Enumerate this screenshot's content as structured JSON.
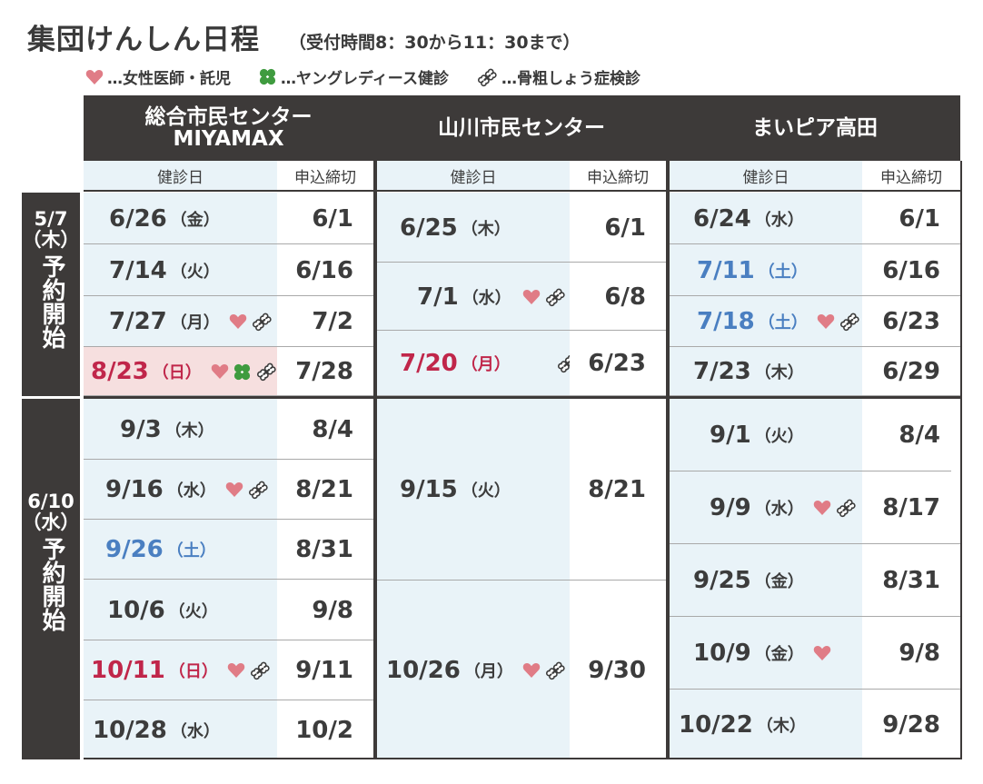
{
  "title": "集団けんしん日程",
  "subtitle": "（受付時間8：30から11：30まで）",
  "legend": [
    {
      "icon": "heart-icon",
      "label": "…女性医師・託児"
    },
    {
      "icon": "clover-icon",
      "label": "…ヤングレディース健診"
    },
    {
      "icon": "bone-icon",
      "label": "…骨粗しょう症検診"
    }
  ],
  "colors": {
    "heart": "#e07c86",
    "clover": "#3f9b3f",
    "blue": "#4a7fc1",
    "red": "#c0264a",
    "dark": "#3d3a39",
    "light_blue": "#e9f3f8"
  },
  "periods": [
    {
      "line1": "5/7",
      "line2": "（木）",
      "line3": "予約開始"
    },
    {
      "line1": "6/10",
      "line2": "（水）",
      "line3": "予約開始"
    }
  ],
  "venues": [
    {
      "name_line1": "総合市民センター",
      "name_line2": "MIYAMAX",
      "col_date": "健診日",
      "col_deadline": "申込締切",
      "rows": [
        {
          "date": "6/26",
          "weekday": "（金）",
          "deadline": "6/1"
        },
        {
          "date": "7/14",
          "weekday": "（火）",
          "deadline": "6/16"
        },
        {
          "date": "7/27",
          "weekday": "（月）",
          "deadline": "7/2",
          "icons": [
            "heart-icon",
            "bone-icon"
          ]
        },
        {
          "date": "8/23",
          "weekday": "（日）",
          "deadline": "7/28",
          "icons": [
            "heart-icon",
            "clover-icon",
            "bone-icon"
          ]
        },
        {
          "date": "9/3",
          "weekday": "（木）",
          "deadline": "8/4"
        },
        {
          "date": "9/16",
          "weekday": "（水）",
          "deadline": "8/21",
          "icons": [
            "heart-icon",
            "bone-icon"
          ]
        },
        {
          "date": "9/26",
          "weekday": "（土）",
          "deadline": "8/31"
        },
        {
          "date": "10/6",
          "weekday": "（火）",
          "deadline": "9/8"
        },
        {
          "date": "10/11",
          "weekday": "（日）",
          "deadline": "9/11",
          "icons": [
            "heart-icon",
            "bone-icon"
          ]
        },
        {
          "date": "10/28",
          "weekday": "（水）",
          "deadline": "10/2"
        }
      ]
    },
    {
      "name_line1": "山川市民センター",
      "name_line2": "",
      "col_date": "健診日",
      "col_deadline": "申込締切",
      "rows": [
        {
          "date": "6/25",
          "weekday": "（木）",
          "deadline": "6/1"
        },
        {
          "date": "7/1",
          "weekday": "（水）",
          "deadline": "6/8",
          "icons": [
            "heart-icon",
            "bone-icon"
          ]
        },
        {
          "date": "7/20",
          "weekday": "（月）",
          "deadline": "6/23",
          "icons": [
            "bone-icon"
          ]
        },
        {
          "date": "9/15",
          "weekday": "（火）",
          "deadline": "8/21"
        },
        {
          "date": "10/26",
          "weekday": "（月）",
          "deadline": "9/30",
          "icons": [
            "heart-icon",
            "bone-icon"
          ]
        }
      ]
    },
    {
      "name_line1": "まいピア高田",
      "name_line2": "",
      "col_date": "健診日",
      "col_deadline": "申込締切",
      "rows": [
        {
          "date": "6/24",
          "weekday": "（水）",
          "deadline": "6/1"
        },
        {
          "date": "7/11",
          "weekday": "（土）",
          "deadline": "6/16"
        },
        {
          "date": "7/18",
          "weekday": "（土）",
          "deadline": "6/23",
          "icons": [
            "heart-icon",
            "bone-icon"
          ]
        },
        {
          "date": "7/23",
          "weekday": "（木）",
          "deadline": "6/29"
        },
        {
          "date": "9/1",
          "weekday": "（火）",
          "deadline": "8/4"
        },
        {
          "date": "9/9",
          "weekday": "（水）",
          "deadline": "8/17",
          "icons": [
            "heart-icon",
            "bone-icon"
          ]
        },
        {
          "date": "9/25",
          "weekday": "（金）",
          "deadline": "8/31"
        },
        {
          "date": "10/9",
          "weekday": "（金）",
          "deadline": "9/8",
          "icons": [
            "heart-icon"
          ]
        },
        {
          "date": "10/22",
          "weekday": "（木）",
          "deadline": "9/28"
        }
      ]
    }
  ]
}
